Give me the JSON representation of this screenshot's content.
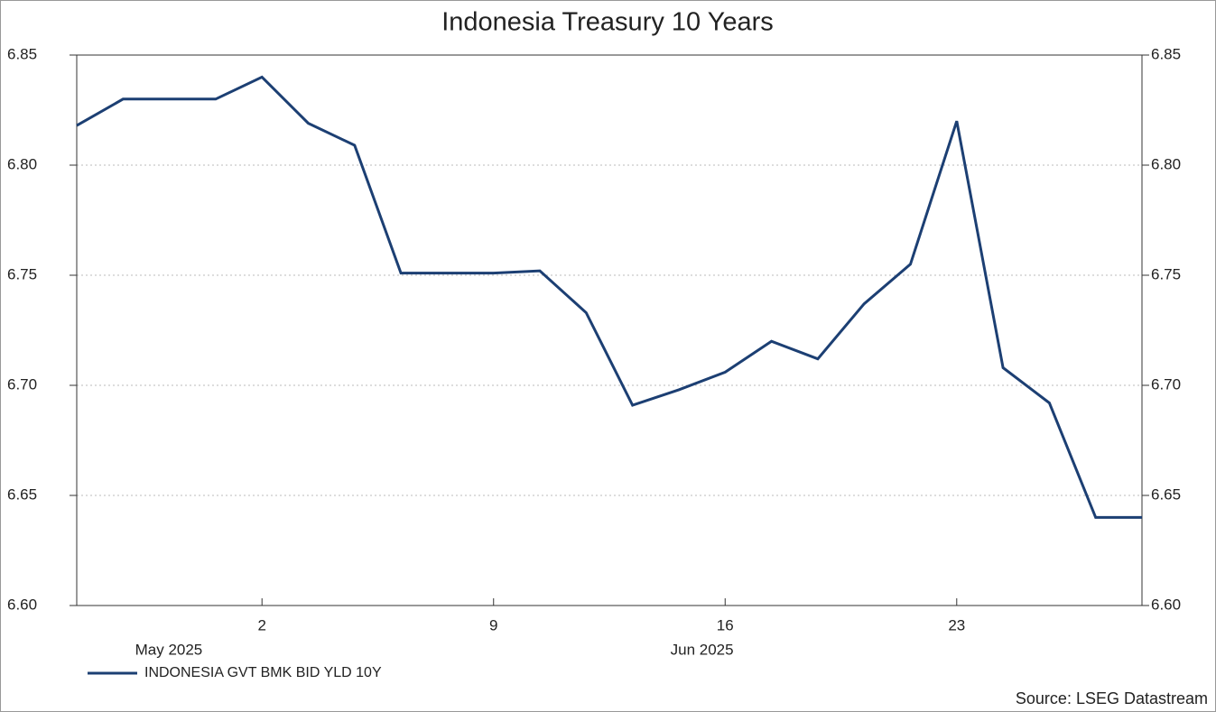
{
  "chart_data": {
    "type": "line",
    "title": "Indonesia Treasury 10 Years",
    "categories": [
      null,
      null,
      null,
      null,
      "2",
      null,
      null,
      null,
      null,
      "9",
      null,
      null,
      null,
      null,
      "16",
      null,
      null,
      null,
      null,
      "23",
      null,
      null,
      null,
      null
    ],
    "month_labels": [
      "May 2025",
      "Jun 2025"
    ],
    "series": [
      {
        "name": "INDONESIA GVT BMK BID YLD 10Y",
        "color": "#1c3f73",
        "values": [
          6.818,
          6.83,
          6.83,
          6.83,
          6.84,
          6.819,
          6.809,
          6.751,
          6.751,
          6.751,
          6.752,
          6.733,
          6.691,
          6.698,
          6.706,
          6.72,
          6.712,
          6.737,
          6.755,
          6.82,
          6.708,
          6.692,
          6.64,
          6.64
        ]
      }
    ],
    "ylim": [
      6.6,
      6.85
    ],
    "yticks": [
      {
        "value": 6.6,
        "label": "6.60"
      },
      6.65,
      {
        "value": 6.7,
        "label": "6.70"
      },
      6.75,
      {
        "value": 6.8,
        "label": "6.80"
      },
      6.85
    ],
    "grid": true,
    "source": "Source: LSEG Datastream"
  }
}
